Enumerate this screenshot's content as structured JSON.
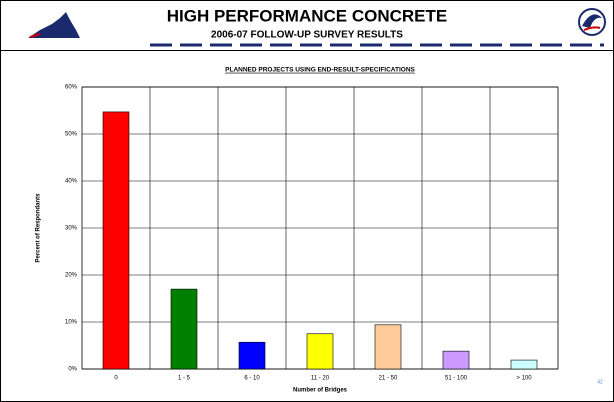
{
  "header": {
    "title": "HIGH PERFORMANCE CONCRETE",
    "subtitle": "2006-07 FOLLOW-UP SURVEY RESULTS"
  },
  "page_number": "42",
  "chart_data": {
    "type": "bar",
    "title": "PLANNED PROJECTS USING END-RESULT-SPECIFICATIONS",
    "xlabel": "Number of Bridges",
    "ylabel": "Percent of Respondants",
    "categories": [
      "0",
      "1 - 5",
      "6 - 10",
      "11 - 20",
      "21 - 50",
      "51 - 100",
      "> 100"
    ],
    "values": [
      54.7,
      17,
      5.7,
      7.5,
      9.4,
      3.8,
      1.9
    ],
    "colors": [
      "#ff0000",
      "#008000",
      "#0000ff",
      "#ffff00",
      "#ffcc99",
      "#cc99ff",
      "#ccffff"
    ],
    "ylim": [
      0,
      60
    ],
    "yticks": [
      {
        "value": 0,
        "label": "0%"
      },
      {
        "value": 10,
        "label": "10%"
      },
      {
        "value": 20,
        "label": "20%"
      },
      {
        "value": 30,
        "label": "30%"
      },
      {
        "value": 40,
        "label": "40%"
      },
      {
        "value": 50,
        "label": "50%"
      },
      {
        "value": 60,
        "label": "60%"
      }
    ],
    "grid": true
  }
}
